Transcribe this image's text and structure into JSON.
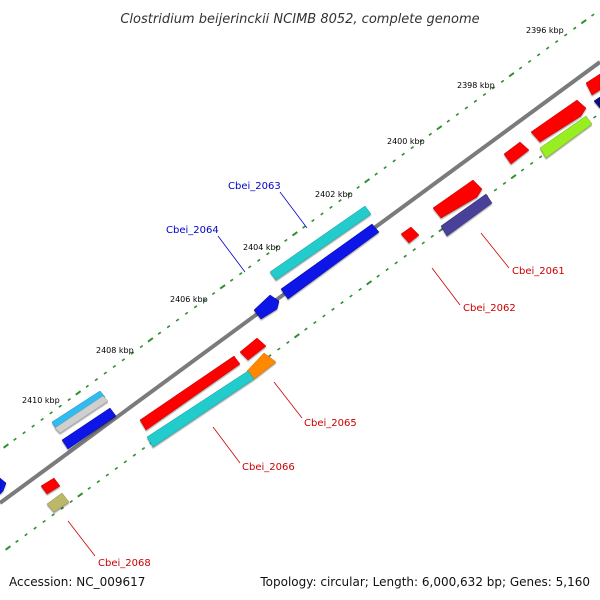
{
  "title": "Clostridium beijerinckii NCIMB 8052, complete genome",
  "footer": {
    "accession": "Accession: NC_009617",
    "summary": "Topology: circular; Length: 6,000,632 bp; Genes: 5,160"
  },
  "colors": {
    "backbone": "#7b7b7b",
    "tick": "#2f8f2f",
    "forward_label": "#0000cc",
    "reverse_label": "#cc0000",
    "callout": "#cc0000",
    "callout_forward": "#0000cc"
  },
  "axis_labels": [
    "2396 kbp",
    "2398 kbp",
    "2400 kbp",
    "2402 kbp",
    "2404 kbp",
    "2406 kbp",
    "2408 kbp",
    "2410 kbp"
  ],
  "gene_labels": {
    "cbei_2061": "Cbei_2061",
    "cbei_2062": "Cbei_2062",
    "cbei_2063": "Cbei_2063",
    "cbei_2064": "Cbei_2064",
    "cbei_2065": "Cbei_2065",
    "cbei_2066": "Cbei_2066",
    "cbei_2068": "Cbei_2068"
  }
}
